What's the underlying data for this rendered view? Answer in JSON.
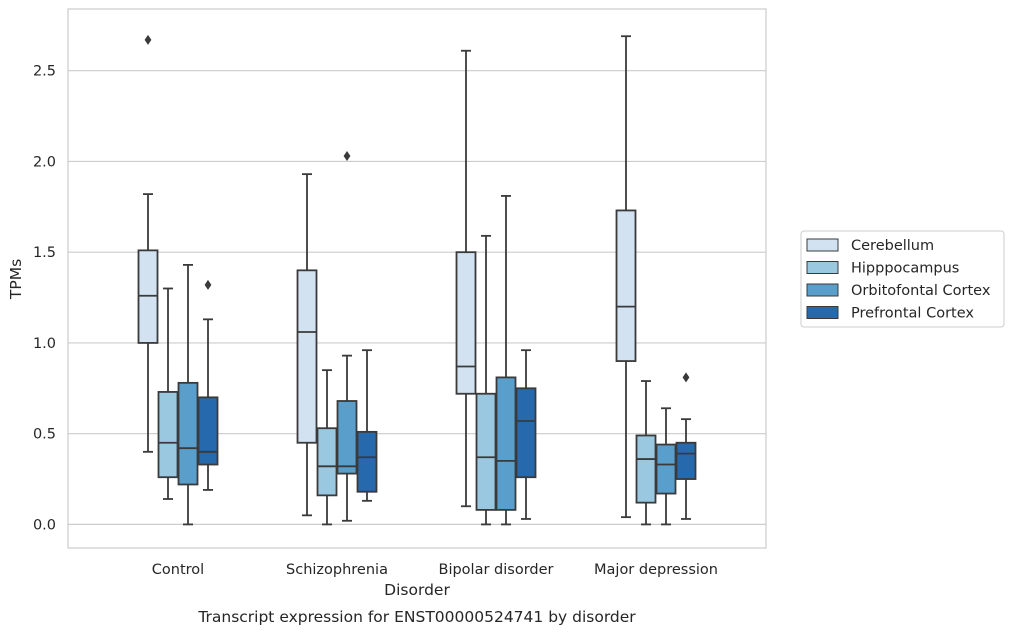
{
  "caption": "Transcript expression for ENST00000524741 by disorder",
  "colors": {
    "grid": "#cccccc",
    "frame": "#cccccc",
    "line": "#3a3a3a",
    "legend_border": "#cccccc"
  },
  "chart_data": {
    "type": "box",
    "title": "",
    "xlabel": "Disorder",
    "ylabel": "TPMs",
    "ylim": [
      -0.13,
      2.84
    ],
    "yticks": [
      0.0,
      0.5,
      1.0,
      1.5,
      2.0,
      2.5
    ],
    "ytick_labels": [
      "0.0",
      "0.5",
      "1.0",
      "1.5",
      "2.0",
      "2.5"
    ],
    "grid": true,
    "legend_position": "right",
    "categories": [
      "Control",
      "Schizophrenia",
      "Bipolar disorder",
      "Major depression"
    ],
    "series": [
      {
        "name": "Cerebellum",
        "color": "#d2e2f1",
        "boxes": [
          {
            "whislo": 0.4,
            "q1": 1.0,
            "med": 1.26,
            "q3": 1.51,
            "whishi": 1.82,
            "fliers": [
              2.67
            ]
          },
          {
            "whislo": 0.05,
            "q1": 0.45,
            "med": 1.06,
            "q3": 1.4,
            "whishi": 1.93,
            "fliers": []
          },
          {
            "whislo": 0.1,
            "q1": 0.72,
            "med": 0.87,
            "q3": 1.5,
            "whishi": 2.61,
            "fliers": []
          },
          {
            "whislo": 0.04,
            "q1": 0.9,
            "med": 1.2,
            "q3": 1.73,
            "whishi": 2.69,
            "fliers": []
          }
        ]
      },
      {
        "name": "Hipppocampus",
        "color": "#9ac8e0",
        "boxes": [
          {
            "whislo": 0.14,
            "q1": 0.26,
            "med": 0.45,
            "q3": 0.73,
            "whishi": 1.3,
            "fliers": []
          },
          {
            "whislo": 0.0,
            "q1": 0.16,
            "med": 0.32,
            "q3": 0.53,
            "whishi": 0.85,
            "fliers": []
          },
          {
            "whislo": 0.0,
            "q1": 0.08,
            "med": 0.37,
            "q3": 0.72,
            "whishi": 1.59,
            "fliers": []
          },
          {
            "whislo": 0.0,
            "q1": 0.12,
            "med": 0.36,
            "q3": 0.49,
            "whishi": 0.79,
            "fliers": []
          }
        ]
      },
      {
        "name": "Orbitofontal Cortex",
        "color": "#5a9fcc",
        "boxes": [
          {
            "whislo": 0.0,
            "q1": 0.22,
            "med": 0.42,
            "q3": 0.78,
            "whishi": 1.43,
            "fliers": []
          },
          {
            "whislo": 0.02,
            "q1": 0.28,
            "med": 0.32,
            "q3": 0.68,
            "whishi": 0.93,
            "fliers": [
              2.03
            ]
          },
          {
            "whislo": 0.0,
            "q1": 0.08,
            "med": 0.35,
            "q3": 0.81,
            "whishi": 1.81,
            "fliers": []
          },
          {
            "whislo": 0.0,
            "q1": 0.17,
            "med": 0.33,
            "q3": 0.44,
            "whishi": 0.64,
            "fliers": []
          }
        ]
      },
      {
        "name": "Prefrontal Cortex",
        "color": "#2669ad",
        "boxes": [
          {
            "whislo": 0.19,
            "q1": 0.33,
            "med": 0.4,
            "q3": 0.7,
            "whishi": 1.13,
            "fliers": [
              1.32
            ]
          },
          {
            "whislo": 0.13,
            "q1": 0.18,
            "med": 0.37,
            "q3": 0.51,
            "whishi": 0.96,
            "fliers": []
          },
          {
            "whislo": 0.03,
            "q1": 0.26,
            "med": 0.57,
            "q3": 0.75,
            "whishi": 0.96,
            "fliers": []
          },
          {
            "whislo": 0.03,
            "q1": 0.25,
            "med": 0.39,
            "q3": 0.45,
            "whishi": 0.58,
            "fliers": [
              0.81
            ]
          }
        ]
      }
    ]
  }
}
